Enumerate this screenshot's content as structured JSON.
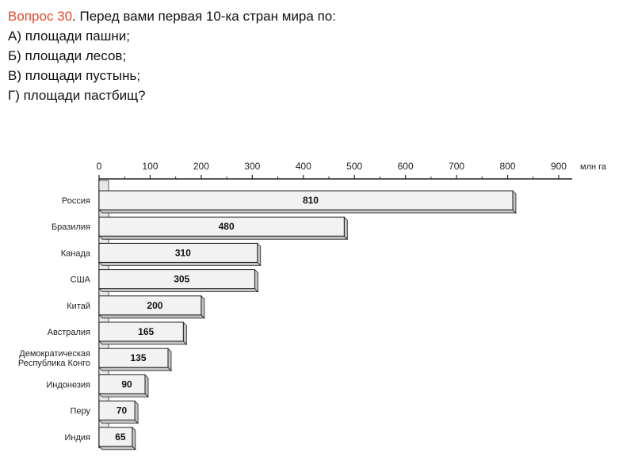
{
  "question": {
    "label": "Вопрос 30",
    "text": ". Перед вами первая 10-ка стран мира по:",
    "options": [
      "А) площади пашни;",
      "Б) площади лесов;",
      "В) площади пустынь;",
      "Г) площади пастбищ?"
    ],
    "label_color": "#e8472a"
  },
  "chart_data": {
    "type": "bar",
    "orientation": "horizontal",
    "unit": "млн га",
    "xlim": [
      0,
      900
    ],
    "ticks": [
      0,
      100,
      200,
      300,
      400,
      500,
      600,
      700,
      800,
      900
    ],
    "tick_labels": [
      "0",
      "100",
      "200",
      "300",
      "400",
      "500",
      "600",
      "700",
      "800",
      "900"
    ],
    "categories": [
      [
        "Россия"
      ],
      [
        "Бразилия"
      ],
      [
        "Канада"
      ],
      [
        "США"
      ],
      [
        "Китай"
      ],
      [
        "Австралия"
      ],
      [
        "Демократическая",
        "Республика Конго"
      ],
      [
        "Индонезия"
      ],
      [
        "Перу"
      ],
      [
        "Индия"
      ]
    ],
    "values": [
      810,
      480,
      310,
      305,
      200,
      165,
      135,
      90,
      70,
      65
    ],
    "value_labels": [
      "810",
      "480",
      "310",
      "305",
      "200",
      "165",
      "135",
      "90",
      "70",
      "65"
    ],
    "grid": false,
    "legend": "none",
    "colors": {
      "bar_face": "#f2f2f2",
      "bar_side": "#c4c4c4",
      "bar_edge": "#222222"
    }
  }
}
